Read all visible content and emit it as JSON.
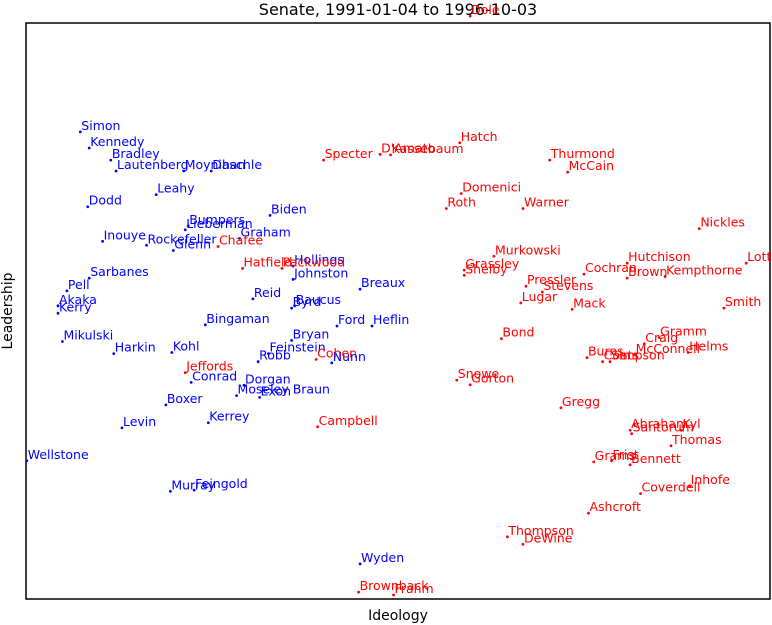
{
  "chart_data": {
    "type": "scatter",
    "title": "Senate, 1991-01-04 to 1996-10-03",
    "xlabel": "Ideology",
    "ylabel": "Leadership",
    "xlim": [
      0,
      100
    ],
    "ylim": [
      0,
      100
    ],
    "grid": false,
    "legend": "none",
    "series": [
      {
        "color": "#0000ff",
        "points": [
          {
            "label": "Simon",
            "x": 7.3,
            "y": 81.1
          },
          {
            "label": "Kennedy",
            "x": 8.5,
            "y": 78.3
          },
          {
            "label": "Bradley",
            "x": 11.4,
            "y": 76.2
          },
          {
            "label": "Lautenberg",
            "x": 12.1,
            "y": 74.3
          },
          {
            "label": "Moynihan",
            "x": 21.2,
            "y": 74.3
          },
          {
            "label": "Daschle",
            "x": 24.9,
            "y": 74.3
          },
          {
            "label": "Leahy",
            "x": 17.5,
            "y": 70.2
          },
          {
            "label": "Dodd",
            "x": 8.3,
            "y": 68.1
          },
          {
            "label": "Biden",
            "x": 32.8,
            "y": 66.6
          },
          {
            "label": "Bumpers",
            "x": 21.8,
            "y": 64.8
          },
          {
            "label": "Lieberman",
            "x": 21.4,
            "y": 64.1
          },
          {
            "label": "Graham",
            "x": 28.7,
            "y": 62.6
          },
          {
            "label": "Inouye",
            "x": 10.3,
            "y": 62.1
          },
          {
            "label": "Rockefeller",
            "x": 16.2,
            "y": 61.4
          },
          {
            "label": "Glenn",
            "x": 19.8,
            "y": 60.5
          },
          {
            "label": "Hollings",
            "x": 35.9,
            "y": 57.8
          },
          {
            "label": "Johnston",
            "x": 35.9,
            "y": 55.5
          },
          {
            "label": "Sarbanes",
            "x": 8.5,
            "y": 55.7
          },
          {
            "label": "Breaux",
            "x": 44.9,
            "y": 53.8
          },
          {
            "label": "Pell",
            "x": 5.5,
            "y": 53.5
          },
          {
            "label": "Reid",
            "x": 30.5,
            "y": 52.1
          },
          {
            "label": "Baucus",
            "x": 36.1,
            "y": 50.9
          },
          {
            "label": "Byrd",
            "x": 35.7,
            "y": 50.5
          },
          {
            "label": "Akaka",
            "x": 4.3,
            "y": 50.9
          },
          {
            "label": "Kerry",
            "x": 4.3,
            "y": 49.6
          },
          {
            "label": "Bingaman",
            "x": 24.1,
            "y": 47.6
          },
          {
            "label": "Ford",
            "x": 41.8,
            "y": 47.4
          },
          {
            "label": "Heflin",
            "x": 46.5,
            "y": 47.4
          },
          {
            "label": "Mikulski",
            "x": 4.9,
            "y": 44.7
          },
          {
            "label": "Bryan",
            "x": 35.7,
            "y": 44.9
          },
          {
            "label": "Harkin",
            "x": 11.8,
            "y": 42.6
          },
          {
            "label": "Kohl",
            "x": 19.6,
            "y": 42.8
          },
          {
            "label": "Feinstein",
            "x": 32.6,
            "y": 42.6
          },
          {
            "label": "Robb",
            "x": 31.2,
            "y": 41.2
          },
          {
            "label": "Nunn",
            "x": 41.1,
            "y": 41.0
          },
          {
            "label": "Conrad",
            "x": 22.2,
            "y": 37.6
          },
          {
            "label": "Dorgan",
            "x": 29.3,
            "y": 37.1
          },
          {
            "label": "Moseley Braun",
            "x": 28.3,
            "y": 35.3
          },
          {
            "label": "Exon",
            "x": 31.4,
            "y": 35.0
          },
          {
            "label": "Boxer",
            "x": 18.8,
            "y": 33.7
          },
          {
            "label": "Kerrey",
            "x": 24.5,
            "y": 30.6
          },
          {
            "label": "Levin",
            "x": 12.9,
            "y": 29.7
          },
          {
            "label": "Wellstone",
            "x": 0.1,
            "y": 24.0
          },
          {
            "label": "Murray",
            "x": 19.4,
            "y": 18.7
          },
          {
            "label": "Feingold",
            "x": 22.6,
            "y": 18.9
          },
          {
            "label": "Wyden",
            "x": 44.9,
            "y": 6.1
          }
        ]
      },
      {
        "color": "#ff0000",
        "points": [
          {
            "label": "Dole",
            "x": 59.7,
            "y": 101.2
          },
          {
            "label": "Hatch",
            "x": 58.3,
            "y": 79.2
          },
          {
            "label": "D'Amato",
            "x": 47.6,
            "y": 77.2
          },
          {
            "label": "Kassebaum",
            "x": 49.0,
            "y": 77.1
          },
          {
            "label": "Specter",
            "x": 40.0,
            "y": 76.2
          },
          {
            "label": "Thurmond",
            "x": 70.4,
            "y": 76.2
          },
          {
            "label": "McCain",
            "x": 72.8,
            "y": 74.1
          },
          {
            "label": "Domenici",
            "x": 58.5,
            "y": 70.4
          },
          {
            "label": "Roth",
            "x": 56.5,
            "y": 67.8
          },
          {
            "label": "Warner",
            "x": 66.8,
            "y": 67.8
          },
          {
            "label": "Nickles",
            "x": 90.5,
            "y": 64.3
          },
          {
            "label": "Chafee",
            "x": 25.8,
            "y": 61.2
          },
          {
            "label": "Murkowski",
            "x": 62.9,
            "y": 59.5
          },
          {
            "label": "Hutchison",
            "x": 80.8,
            "y": 58.3
          },
          {
            "label": "Lott",
            "x": 96.8,
            "y": 58.3
          },
          {
            "label": "Hatfield",
            "x": 29.1,
            "y": 57.4
          },
          {
            "label": "Packwood",
            "x": 34.4,
            "y": 57.4
          },
          {
            "label": "Grassley",
            "x": 58.9,
            "y": 57.1
          },
          {
            "label": "Shelby",
            "x": 58.9,
            "y": 56.2
          },
          {
            "label": "Cochran",
            "x": 75.0,
            "y": 56.4
          },
          {
            "label": "Brown",
            "x": 80.8,
            "y": 55.7
          },
          {
            "label": "Kempthorne",
            "x": 85.9,
            "y": 56.0
          },
          {
            "label": "Pressler",
            "x": 67.2,
            "y": 54.3
          },
          {
            "label": "Stevens",
            "x": 69.4,
            "y": 53.3
          },
          {
            "label": "Lugar",
            "x": 66.5,
            "y": 51.4
          },
          {
            "label": "Mack",
            "x": 73.4,
            "y": 50.3
          },
          {
            "label": "Smith",
            "x": 93.8,
            "y": 50.5
          },
          {
            "label": "Bond",
            "x": 63.9,
            "y": 45.2
          },
          {
            "label": "Gramm",
            "x": 85.1,
            "y": 45.4
          },
          {
            "label": "Craig",
            "x": 83.1,
            "y": 44.3
          },
          {
            "label": "Helms",
            "x": 89.0,
            "y": 42.8
          },
          {
            "label": "McConnell",
            "x": 81.8,
            "y": 42.4
          },
          {
            "label": "Burns",
            "x": 75.4,
            "y": 41.9
          },
          {
            "label": "Coats",
            "x": 77.5,
            "y": 41.2
          },
          {
            "label": "Simpson",
            "x": 78.5,
            "y": 41.2
          },
          {
            "label": "Cohen",
            "x": 39.0,
            "y": 41.6
          },
          {
            "label": "Jeffords",
            "x": 21.4,
            "y": 39.3
          },
          {
            "label": "Snowe",
            "x": 57.9,
            "y": 38.0
          },
          {
            "label": "Gorton",
            "x": 59.7,
            "y": 37.2
          },
          {
            "label": "Gregg",
            "x": 71.9,
            "y": 33.2
          },
          {
            "label": "Abraham",
            "x": 81.2,
            "y": 29.3
          },
          {
            "label": "Kyl",
            "x": 88.1,
            "y": 29.3
          },
          {
            "label": "Santorum",
            "x": 81.4,
            "y": 28.7
          },
          {
            "label": "Thomas",
            "x": 86.7,
            "y": 26.6
          },
          {
            "label": "Campbell",
            "x": 39.2,
            "y": 29.9
          },
          {
            "label": "Grams",
            "x": 76.3,
            "y": 23.8
          },
          {
            "label": "Frist",
            "x": 78.7,
            "y": 24.0
          },
          {
            "label": "Bennett",
            "x": 81.2,
            "y": 23.3
          },
          {
            "label": "Inhofe",
            "x": 89.2,
            "y": 19.6
          },
          {
            "label": "Coverdell",
            "x": 82.6,
            "y": 18.3
          },
          {
            "label": "Ashcroft",
            "x": 75.6,
            "y": 14.9
          },
          {
            "label": "Thompson",
            "x": 64.7,
            "y": 10.8
          },
          {
            "label": "DeWine",
            "x": 66.8,
            "y": 9.5
          },
          {
            "label": "Brownback",
            "x": 44.7,
            "y": 1.2
          },
          {
            "label": "Frahm",
            "x": 49.4,
            "y": 0.7
          }
        ]
      }
    ]
  }
}
